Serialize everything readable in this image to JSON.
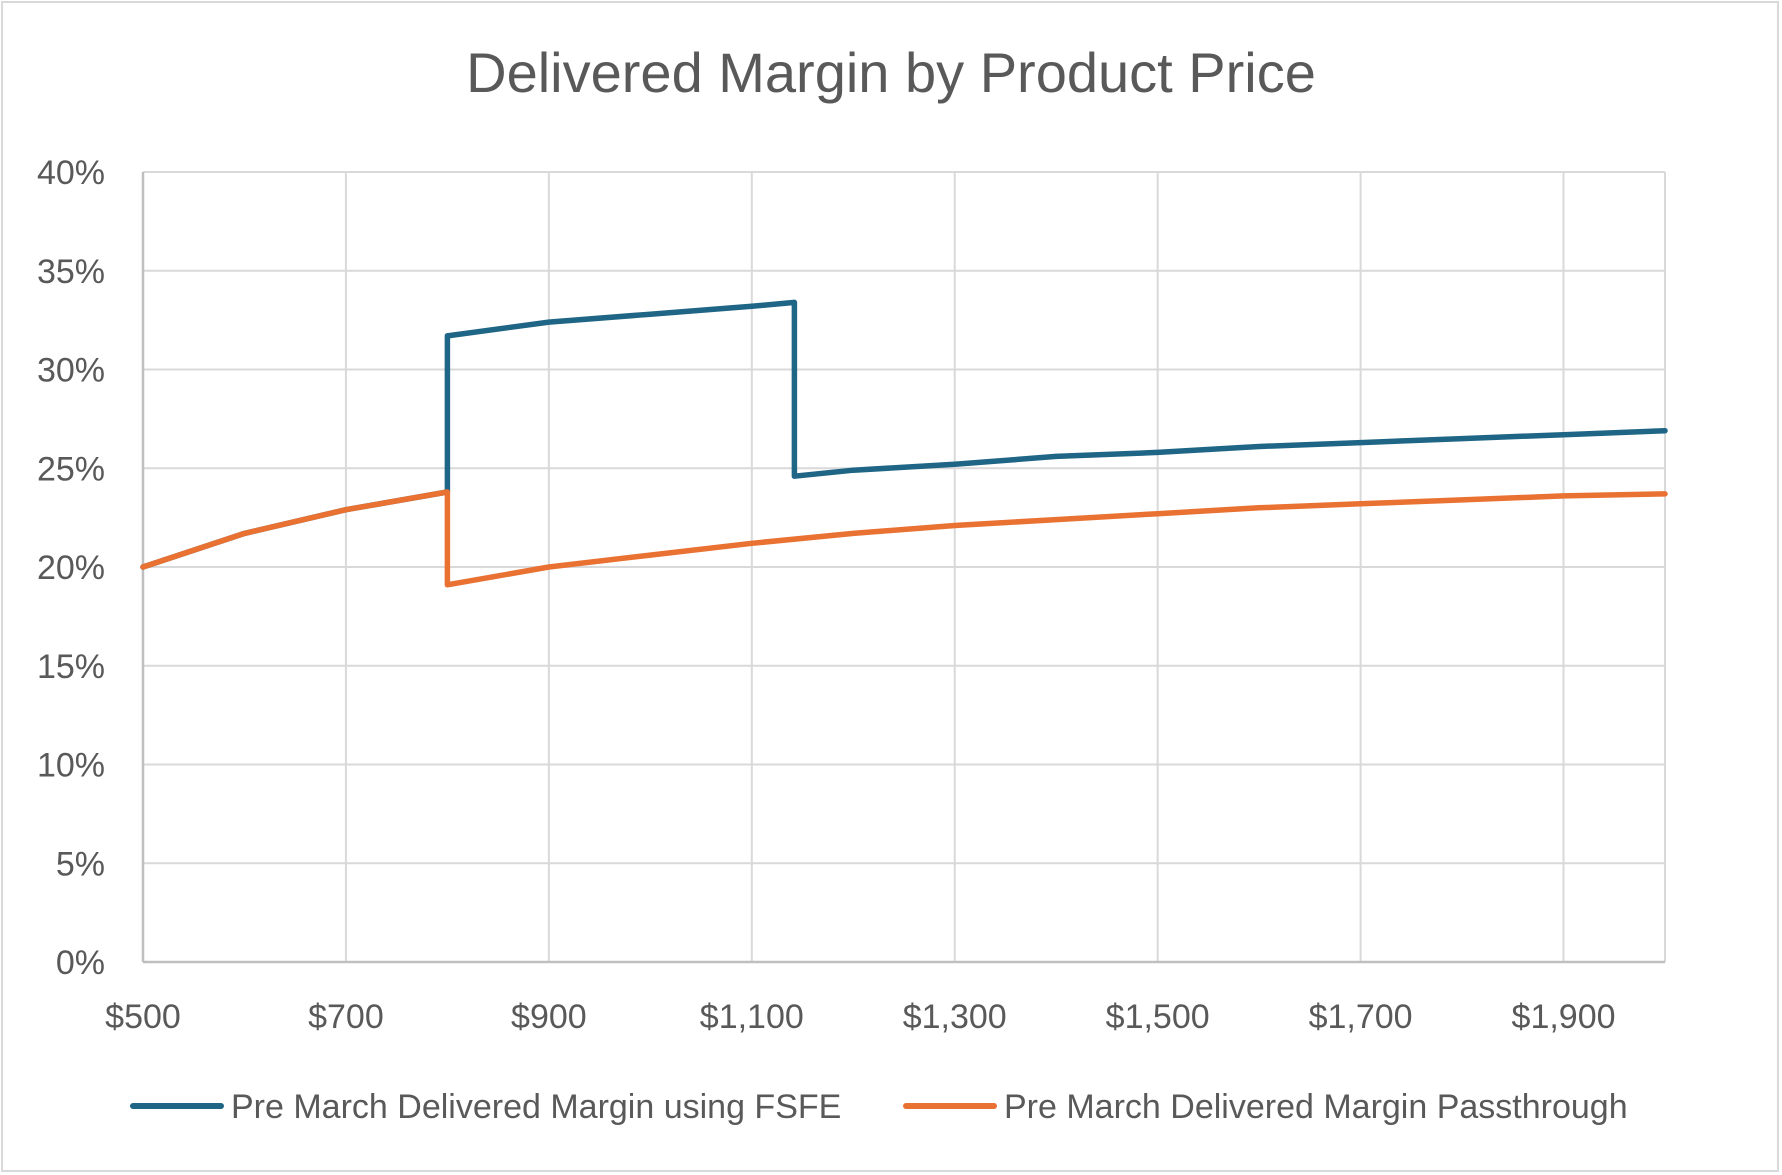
{
  "chart_data": {
    "type": "line",
    "title": "Delivered Margin by Product Price",
    "xlabel": "",
    "ylabel": "",
    "xlim": [
      500,
      2000
    ],
    "ylim": [
      0,
      40
    ],
    "x_ticks": [
      500,
      700,
      900,
      1100,
      1300,
      1500,
      1700,
      1900
    ],
    "x_tick_labels": [
      "$500",
      "$700",
      "$900",
      "$1,100",
      "$1,300",
      "$1,500",
      "$1,700",
      "$1,900"
    ],
    "y_ticks": [
      0,
      5,
      10,
      15,
      20,
      25,
      30,
      35,
      40
    ],
    "y_tick_labels": [
      "0%",
      "5%",
      "10%",
      "15%",
      "20%",
      "25%",
      "30%",
      "35%",
      "40%"
    ],
    "grid": true,
    "legend_position": "bottom",
    "series": [
      {
        "name": "Pre March Delivered Margin using FSFE",
        "color": "#1f6585",
        "points": [
          [
            500,
            20.0
          ],
          [
            600,
            21.7
          ],
          [
            700,
            22.9
          ],
          [
            800,
            23.8
          ],
          [
            800,
            31.7
          ],
          [
            900,
            32.4
          ],
          [
            1000,
            32.8
          ],
          [
            1100,
            33.2
          ],
          [
            1142,
            33.4
          ],
          [
            1142,
            24.6
          ],
          [
            1200,
            24.9
          ],
          [
            1300,
            25.2
          ],
          [
            1400,
            25.6
          ],
          [
            1500,
            25.8
          ],
          [
            1600,
            26.1
          ],
          [
            1700,
            26.3
          ],
          [
            1800,
            26.5
          ],
          [
            1900,
            26.7
          ],
          [
            2000,
            26.9
          ]
        ]
      },
      {
        "name": "Pre March Delivered Margin Passthrough",
        "color": "#e97132",
        "points": [
          [
            500,
            20.0
          ],
          [
            600,
            21.7
          ],
          [
            700,
            22.9
          ],
          [
            800,
            23.8
          ],
          [
            800,
            19.1
          ],
          [
            900,
            20.0
          ],
          [
            1000,
            20.6
          ],
          [
            1100,
            21.2
          ],
          [
            1200,
            21.7
          ],
          [
            1300,
            22.1
          ],
          [
            1400,
            22.4
          ],
          [
            1500,
            22.7
          ],
          [
            1600,
            23.0
          ],
          [
            1700,
            23.2
          ],
          [
            1800,
            23.4
          ],
          [
            1900,
            23.6
          ],
          [
            2000,
            23.7
          ]
        ]
      }
    ]
  }
}
